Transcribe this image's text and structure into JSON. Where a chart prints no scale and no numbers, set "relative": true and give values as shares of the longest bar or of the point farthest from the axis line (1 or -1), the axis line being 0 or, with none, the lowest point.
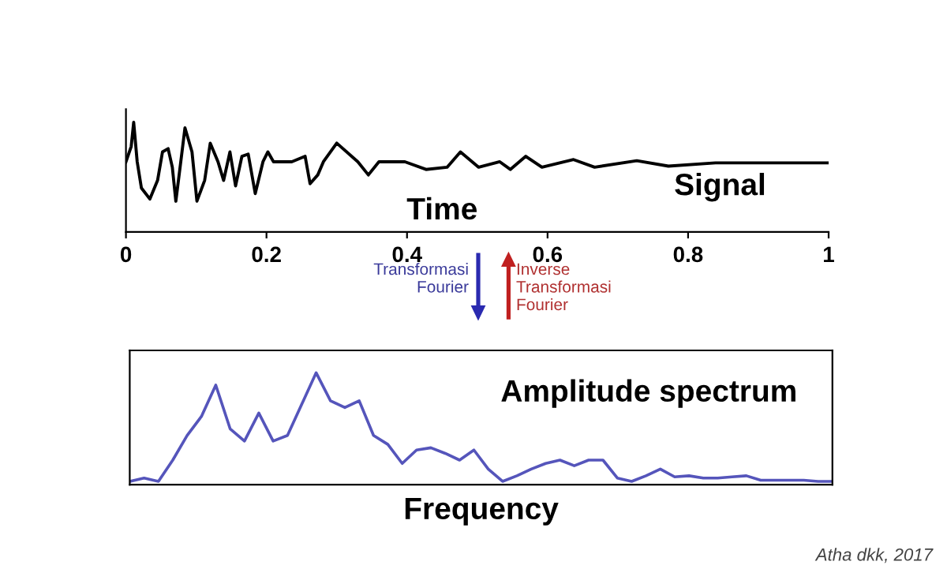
{
  "chart_data": [
    {
      "type": "line",
      "xlabel": "Time",
      "relative": true,
      "xlim": [
        0,
        1
      ],
      "xticks": [
        0,
        0.2,
        0.4,
        0.6,
        0.8,
        1
      ],
      "grid": false,
      "legend": false,
      "x": [
        0,
        0.0075,
        0.011,
        0.016,
        0.022,
        0.034,
        0.045,
        0.052,
        0.06,
        0.066,
        0.071,
        0.079,
        0.084,
        0.094,
        0.101,
        0.112,
        0.12,
        0.131,
        0.139,
        0.148,
        0.156,
        0.165,
        0.174,
        0.184,
        0.195,
        0.202,
        0.21,
        0.236,
        0.255,
        0.262,
        0.273,
        0.281,
        0.3,
        0.33,
        0.345,
        0.36,
        0.397,
        0.427,
        0.457,
        0.476,
        0.502,
        0.532,
        0.547,
        0.569,
        0.592,
        0.637,
        0.667,
        0.727,
        0.772,
        0.839,
        1
      ],
      "series": [
        {
          "color": "#000000",
          "values": [
            0.64,
            0.78,
            1.0,
            0.64,
            0.4,
            0.3,
            0.47,
            0.73,
            0.76,
            0.59,
            0.28,
            0.69,
            0.95,
            0.73,
            0.28,
            0.47,
            0.81,
            0.64,
            0.47,
            0.73,
            0.42,
            0.69,
            0.71,
            0.35,
            0.64,
            0.73,
            0.64,
            0.64,
            0.69,
            0.44,
            0.52,
            0.64,
            0.81,
            0.64,
            0.52,
            0.64,
            0.64,
            0.57,
            0.59,
            0.73,
            0.59,
            0.64,
            0.57,
            0.69,
            0.59,
            0.66,
            0.59,
            0.65,
            0.6,
            0.63,
            0.63
          ]
        }
      ],
      "annotations": [
        "Signal",
        "Transformasi\nFourier",
        "Inverse\nTransformasi\nFourier"
      ]
    },
    {
      "type": "line",
      "xlabel": "Frequency",
      "relative": true,
      "grid": false,
      "legend": false,
      "categories": [
        null,
        null,
        null,
        null,
        null,
        null,
        null,
        null,
        null,
        null,
        null,
        null,
        null,
        null,
        null,
        null,
        null,
        null,
        null,
        null,
        null,
        null,
        null,
        null,
        null,
        null,
        null,
        null,
        null,
        null,
        null,
        null,
        null,
        null,
        null,
        null,
        null,
        null,
        null,
        null,
        null,
        null,
        null,
        null,
        null,
        null,
        null,
        null,
        null,
        null
      ],
      "series": [
        {
          "color": "#5555bb",
          "values": [
            0.03,
            0.06,
            0.03,
            0.22,
            0.44,
            0.61,
            0.89,
            0.5,
            0.39,
            0.64,
            0.39,
            0.44,
            0.72,
            1.0,
            0.75,
            0.69,
            0.75,
            0.44,
            0.36,
            0.19,
            0.31,
            0.33,
            0.28,
            0.22,
            0.31,
            0.14,
            0.03,
            0.08,
            0.14,
            0.19,
            0.22,
            0.17,
            0.22,
            0.22,
            0.06,
            0.03,
            0.08,
            0.14,
            0.07,
            0.08,
            0.06,
            0.06,
            0.07,
            0.08,
            0.04,
            0.04,
            0.04,
            0.04,
            0.03,
            0.03
          ]
        }
      ],
      "annotations": [
        "Amplitude spectrum",
        "Atha dkk, 2017"
      ]
    }
  ]
}
